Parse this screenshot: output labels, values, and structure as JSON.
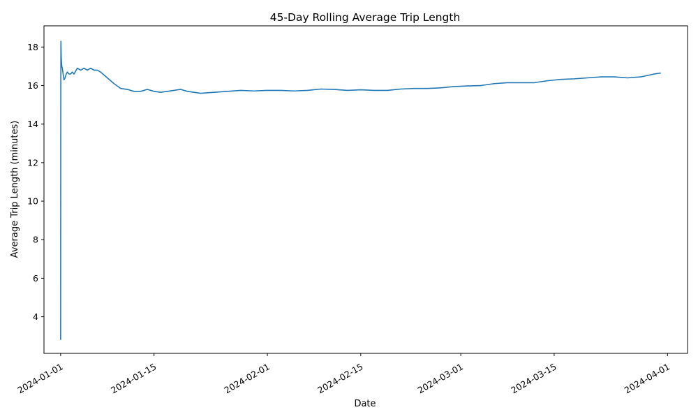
{
  "chart_data": {
    "type": "line",
    "title": "45-Day Rolling Average Trip Length",
    "xlabel": "Date",
    "ylabel": "Average Trip Length (minutes)",
    "xlim": [
      "2023-12-29T12:00",
      "2024-04-04T00:00"
    ],
    "ylim": [
      2.1,
      19.1
    ],
    "x_ticks": [
      "2024-01-01",
      "2024-01-15",
      "2024-02-01",
      "2024-02-15",
      "2024-03-01",
      "2024-03-15",
      "2024-04-01"
    ],
    "y_ticks": [
      4,
      6,
      8,
      10,
      12,
      14,
      16,
      18
    ],
    "grid": false,
    "legend": "none",
    "series": [
      {
        "color": "#1f77b4",
        "x": [
          "2024-01-01T00:00",
          "2024-01-01T00:30",
          "2024-01-01T01:00",
          "2024-01-01T02:00",
          "2024-01-01T03:00",
          "2024-01-01T04:00",
          "2024-01-01T06:00",
          "2024-01-01T08:00",
          "2024-01-01T10:00",
          "2024-01-01T12:00",
          "2024-01-01T16:00",
          "2024-01-01T20:00",
          "2024-01-02T00:00",
          "2024-01-02T06:00",
          "2024-01-02T12:00",
          "2024-01-02T18:00",
          "2024-01-03T00:00",
          "2024-01-03T12:00",
          "2024-01-04T00:00",
          "2024-01-04T12:00",
          "2024-01-05T00:00",
          "2024-01-05T12:00",
          "2024-01-06T00:00",
          "2024-01-06T12:00",
          "2024-01-07T00:00",
          "2024-01-08T00:00",
          "2024-01-09T00:00",
          "2024-01-10T00:00",
          "2024-01-11T00:00",
          "2024-01-12T00:00",
          "2024-01-13T00:00",
          "2024-01-14T00:00",
          "2024-01-15T00:00",
          "2024-01-16T00:00",
          "2024-01-17T00:00",
          "2024-01-18T00:00",
          "2024-01-19T00:00",
          "2024-01-20T00:00",
          "2024-01-21T00:00",
          "2024-01-22T00:00",
          "2024-01-24T00:00",
          "2024-01-26T00:00",
          "2024-01-28T00:00",
          "2024-01-30T00:00",
          "2024-02-01T00:00",
          "2024-02-03T00:00",
          "2024-02-05T00:00",
          "2024-02-07T00:00",
          "2024-02-09T00:00",
          "2024-02-11T00:00",
          "2024-02-13T00:00",
          "2024-02-15T00:00",
          "2024-02-17T00:00",
          "2024-02-19T00:00",
          "2024-02-21T00:00",
          "2024-02-23T00:00",
          "2024-02-25T00:00",
          "2024-02-27T00:00",
          "2024-02-29T00:00",
          "2024-03-02T00:00",
          "2024-03-04T00:00",
          "2024-03-06T00:00",
          "2024-03-08T00:00",
          "2024-03-10T00:00",
          "2024-03-12T00:00",
          "2024-03-14T00:00",
          "2024-03-16T00:00",
          "2024-03-18T00:00",
          "2024-03-20T00:00",
          "2024-03-22T00:00",
          "2024-03-24T00:00",
          "2024-03-26T00:00",
          "2024-03-28T00:00",
          "2024-03-30T00:00",
          "2024-03-31T00:00"
        ],
        "y": [
          2.8,
          15.0,
          18.3,
          17.5,
          17.2,
          17.0,
          16.9,
          16.7,
          16.5,
          16.3,
          16.4,
          16.6,
          16.7,
          16.6,
          16.6,
          16.7,
          16.6,
          16.9,
          16.8,
          16.9,
          16.8,
          16.9,
          16.8,
          16.8,
          16.7,
          16.4,
          16.1,
          15.85,
          15.8,
          15.7,
          15.7,
          15.8,
          15.7,
          15.65,
          15.7,
          15.75,
          15.8,
          15.7,
          15.65,
          15.6,
          15.65,
          15.7,
          15.75,
          15.72,
          15.75,
          15.75,
          15.72,
          15.75,
          15.82,
          15.8,
          15.75,
          15.78,
          15.75,
          15.75,
          15.82,
          15.85,
          15.85,
          15.88,
          15.95,
          15.98,
          16.0,
          16.1,
          16.15,
          16.15,
          16.15,
          16.25,
          16.32,
          16.35,
          16.4,
          16.45,
          16.45,
          16.4,
          16.45,
          16.6,
          16.65
        ]
      }
    ]
  }
}
